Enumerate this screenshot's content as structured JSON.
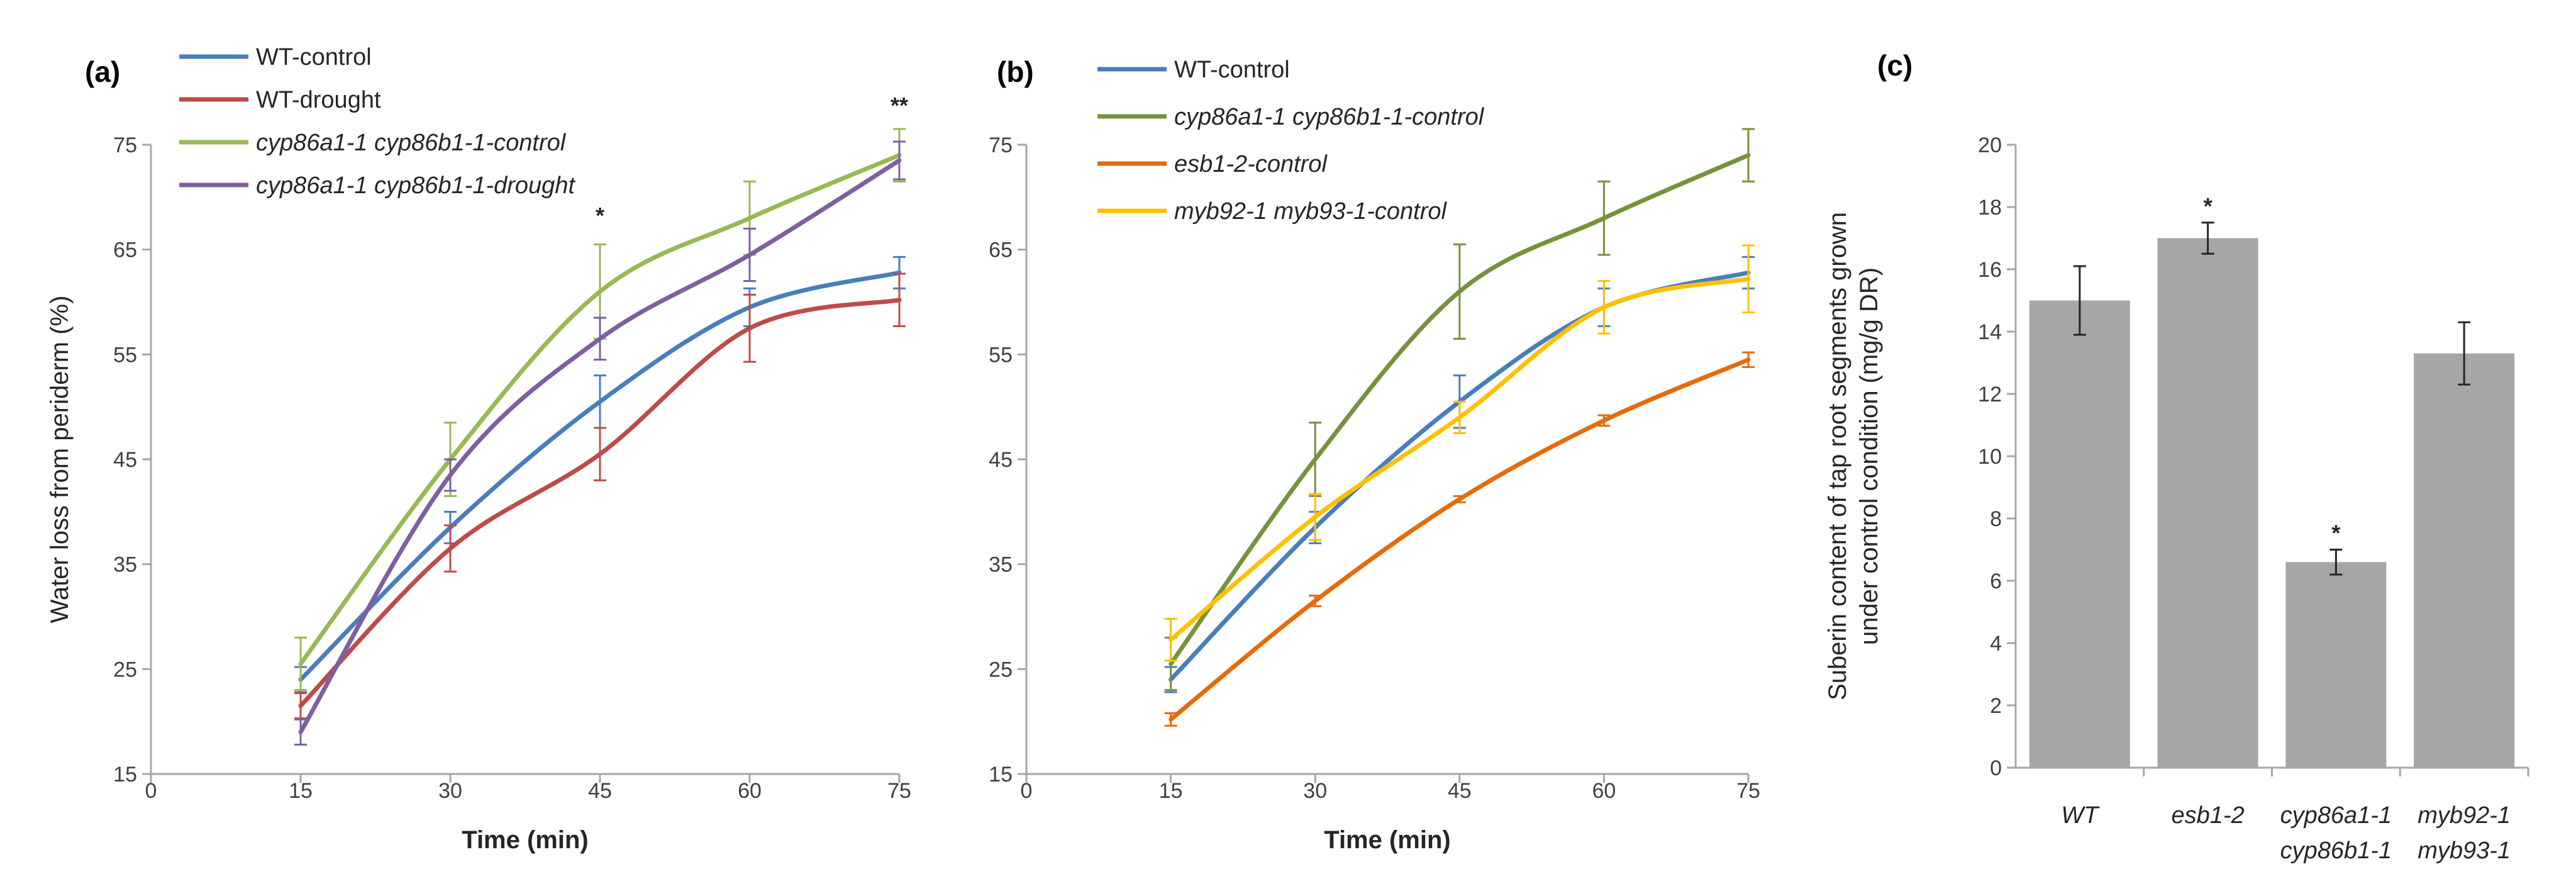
{
  "chart_data": [
    {
      "type": "line",
      "panel_label": "(a)",
      "xlabel": "Time (min)",
      "ylabel": "Water loss  from periderm  (%)",
      "xlim": [
        0,
        75
      ],
      "ylim": [
        15,
        75
      ],
      "x_ticks": [
        "0",
        "15",
        "30",
        "45",
        "60",
        "75"
      ],
      "y_ticks": [
        "15",
        "25",
        "35",
        "45",
        "55",
        "65",
        "75"
      ],
      "x": [
        15,
        30,
        45,
        60,
        75
      ],
      "series": [
        {
          "name": "WT-control",
          "italic": false,
          "color": "#4a7ebb",
          "values": [
            24,
            38.5,
            50.5,
            59.5,
            62.8
          ],
          "errors": [
            1.2,
            1.5,
            2.5,
            1.8,
            1.5
          ]
        },
        {
          "name": "WT-drought",
          "italic": false,
          "color": "#be4b48",
          "values": [
            21.5,
            36.5,
            45.5,
            57.5,
            60.2
          ],
          "errors": [
            1.2,
            2.2,
            2.5,
            3.2,
            2.5
          ]
        },
        {
          "name": "cyp86a1-1 cyp86b1-1-control",
          "italic": true,
          "color": "#98b954",
          "values": [
            25.5,
            45,
            61,
            68,
            74
          ],
          "errors": [
            2.5,
            3.5,
            4.5,
            3.5,
            2.5
          ]
        },
        {
          "name": "cyp86a1-1 cyp86b1-1-drought",
          "italic": true,
          "color": "#7d60a0",
          "values": [
            19,
            43.5,
            56.5,
            64.5,
            73.5
          ],
          "errors": [
            1.2,
            1.5,
            2,
            2.5,
            1.8
          ]
        }
      ],
      "annotations": [
        {
          "text": "*",
          "x": 45,
          "y": 67.5
        },
        {
          "text": "**",
          "x": 75,
          "y": 78
        }
      ]
    },
    {
      "type": "line",
      "panel_label": "(b)",
      "xlabel": "Time (min)",
      "ylabel": "",
      "xlim": [
        0,
        75
      ],
      "ylim": [
        15,
        75
      ],
      "x_ticks": [
        "0",
        "15",
        "30",
        "45",
        "60",
        "75"
      ],
      "y_ticks": [
        "15",
        "25",
        "35",
        "45",
        "55",
        "65",
        "75"
      ],
      "x": [
        15,
        30,
        45,
        60,
        75
      ],
      "series": [
        {
          "name": "WT-control",
          "italic": false,
          "color": "#4a7ebb",
          "values": [
            24,
            38.5,
            50.5,
            59.5,
            62.8
          ],
          "errors": [
            1.2,
            1.5,
            2.5,
            1.8,
            1.5
          ]
        },
        {
          "name": "cyp86a1-1 cyp86b1-1-control",
          "italic": true,
          "color": "#76923c",
          "values": [
            25.5,
            45,
            61,
            68,
            74
          ],
          "errors": [
            2.5,
            3.5,
            4.5,
            3.5,
            2.5
          ]
        },
        {
          "name": "esb1-2-control",
          "italic": true,
          "color": "#e46c0a",
          "values": [
            20.2,
            31.5,
            41.2,
            48.7,
            54.5
          ],
          "errors": [
            0.6,
            0.5,
            0.3,
            0.5,
            0.7
          ]
        },
        {
          "name": "myb92-1 myb93-1-control",
          "italic": true,
          "color": "#ffc000",
          "values": [
            27.8,
            39.5,
            49,
            59.5,
            62.2
          ],
          "errors": [
            2,
            2.2,
            1.5,
            2.5,
            3.2
          ]
        }
      ]
    },
    {
      "type": "bar",
      "panel_label": "(c)",
      "ylabel_lines": [
        "Suberin content of tap root segments grown",
        "under control condition  (mg/g DR)"
      ],
      "categories": [
        {
          "lines": [
            "WT"
          ],
          "value": 15.0,
          "error": 1.1,
          "sig": ""
        },
        {
          "lines": [
            "esb1-2"
          ],
          "value": 17.0,
          "error": 0.5,
          "sig": "*"
        },
        {
          "lines": [
            "cyp86a1-1",
            "cyp86b1-1"
          ],
          "value": 6.6,
          "error": 0.4,
          "sig": "*"
        },
        {
          "lines": [
            "myb92-1",
            "myb93-1"
          ],
          "value": 13.3,
          "error": 1.0,
          "sig": ""
        }
      ],
      "color": "#a6a6a6",
      "ylim": [
        0,
        20
      ],
      "y_ticks": [
        "0",
        "2",
        "4",
        "6",
        "8",
        "10",
        "12",
        "14",
        "16",
        "18",
        "20"
      ]
    }
  ]
}
